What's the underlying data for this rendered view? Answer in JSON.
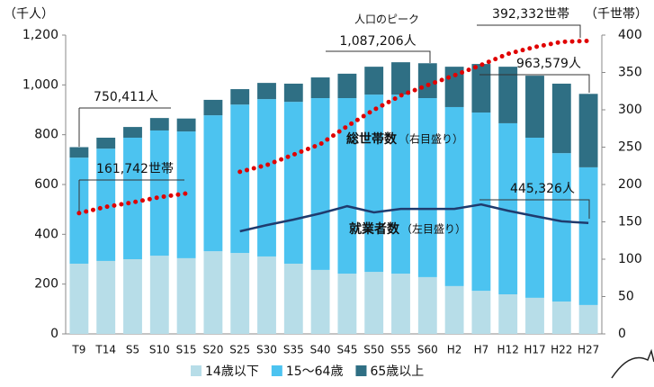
{
  "chart_data": {
    "type": "bar",
    "y_unit_label": "（千人）",
    "y2_unit_label": "（千世帯）",
    "categories": [
      "T9",
      "T14",
      "S5",
      "S10",
      "S15",
      "S20",
      "S25",
      "S30",
      "S35",
      "S40",
      "S45",
      "S50",
      "S55",
      "S60",
      "H2",
      "H7",
      "H12",
      "H17",
      "H22",
      "H27"
    ],
    "series": [
      {
        "name": "14歳以下",
        "type": "bar",
        "color": "#b7dde8",
        "values": [
          282,
          293,
          300,
          314,
          304,
          332,
          325,
          311,
          282,
          257,
          242,
          249,
          242,
          228,
          192,
          173,
          159,
          145,
          130,
          116
        ]
      },
      {
        "name": "15～64歳",
        "type": "bar",
        "color": "#4cc3f0",
        "values": [
          426,
          451,
          488,
          503,
          509,
          546,
          596,
          632,
          650,
          690,
          705,
          712,
          719,
          719,
          719,
          716,
          687,
          643,
          596,
          553
        ]
      },
      {
        "name": "65歳以上",
        "type": "bar",
        "color": "#2f6f84",
        "values": [
          42,
          44,
          43,
          50,
          52,
          62,
          62,
          65,
          73,
          83,
          98,
          112,
          130,
          140,
          162,
          195,
          227,
          249,
          279,
          295
        ]
      },
      {
        "name": "総世帯数",
        "note": "（右目盛り）",
        "type": "dotted-line",
        "axis": "y2",
        "color": "#e00000",
        "values": [
          161.742,
          170,
          176,
          183,
          188,
          null,
          217,
          226,
          240,
          254,
          278,
          300,
          319,
          333,
          346,
          360,
          375,
          384,
          391,
          392.332
        ]
      },
      {
        "name": "就業者数",
        "note": "（左目盛り）",
        "type": "line",
        "color": "#1f3b6e",
        "values": [
          null,
          null,
          null,
          null,
          null,
          null,
          412,
          437,
          459,
          484,
          513,
          488,
          502,
          502,
          502,
          520,
          495,
          473,
          452,
          445.326
        ]
      }
    ],
    "annotations": [
      "人口のピーク",
      "1,087,206人",
      "750,411人",
      "161,742世帯",
      "392,332世帯",
      "963,579人",
      "445,326人"
    ],
    "ylim": [
      0,
      1200
    ],
    "yticks": [
      0,
      200,
      400,
      600,
      800,
      {
        "value": 1000,
        "label": "1,000"
      },
      {
        "value": 1200,
        "label": "1,200"
      }
    ],
    "y2lim": [
      0,
      400
    ],
    "y2ticks": [
      0,
      50,
      100,
      150,
      200,
      250,
      300,
      350,
      400
    ],
    "legend": "bottom"
  }
}
